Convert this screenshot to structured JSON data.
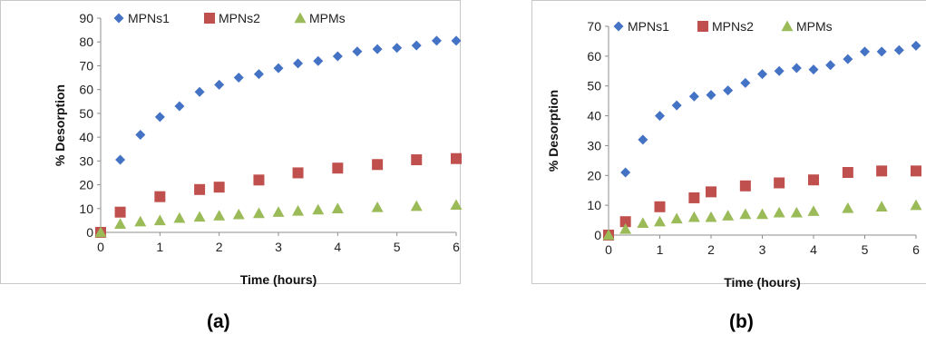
{
  "chart_data": [
    {
      "type": "scatter",
      "xlabel": "Time (hours)",
      "ylabel": "% Desorption",
      "xlim": [
        0,
        6
      ],
      "ylim": [
        0,
        90
      ],
      "xticks": [
        "0",
        "1",
        "2",
        "3",
        "4",
        "5",
        "6"
      ],
      "yticks": [
        "0",
        "10",
        "20",
        "30",
        "40",
        "50",
        "60",
        "70",
        "80",
        "90"
      ],
      "legend_position": "top",
      "grid": false,
      "panel_label": "(a)",
      "series": [
        {
          "name": "MPNs1",
          "marker": "diamond",
          "color": "#4472c4",
          "x": [
            0,
            0.33,
            0.67,
            1,
            1.33,
            1.67,
            2,
            2.33,
            2.67,
            3,
            3.33,
            3.67,
            4,
            4.33,
            4.67,
            5,
            5.33,
            5.67,
            6
          ],
          "y": [
            0,
            30.5,
            41,
            48.5,
            53,
            59,
            62,
            65,
            66.5,
            69,
            71,
            72,
            74,
            76,
            77,
            77.5,
            78.5,
            80.5,
            80.5
          ]
        },
        {
          "name": "MPNs2",
          "marker": "square",
          "color": "#c0504d",
          "x": [
            0,
            0.33,
            1,
            1.67,
            2,
            2.67,
            3.33,
            4,
            4.67,
            5.33,
            6
          ],
          "y": [
            0,
            8.5,
            15,
            18,
            19,
            22,
            25,
            27,
            28.5,
            30.5,
            31
          ]
        },
        {
          "name": "MPMs",
          "marker": "triangle",
          "color": "#9bbb59",
          "x": [
            0,
            0.33,
            0.67,
            1,
            1.33,
            1.67,
            2,
            2.33,
            2.67,
            3,
            3.33,
            3.67,
            4,
            4.67,
            5.33,
            6
          ],
          "y": [
            0,
            3.5,
            4.5,
            5,
            6,
            6.5,
            7,
            7.5,
            8,
            8.5,
            9,
            9.5,
            10,
            10.5,
            11,
            11.5
          ]
        }
      ]
    },
    {
      "type": "scatter",
      "xlabel": "Time (hours)",
      "ylabel": "% Desorption",
      "xlim": [
        0,
        6
      ],
      "ylim": [
        0,
        70
      ],
      "xticks": [
        "0",
        "1",
        "2",
        "3",
        "4",
        "5",
        "6"
      ],
      "yticks": [
        "0",
        "10",
        "20",
        "30",
        "40",
        "50",
        "60",
        "70"
      ],
      "legend_position": "top",
      "grid": false,
      "panel_label": "(b)",
      "series": [
        {
          "name": "MPNs1",
          "marker": "diamond",
          "color": "#4472c4",
          "x": [
            0,
            0.33,
            0.67,
            1,
            1.33,
            1.67,
            2,
            2.33,
            2.67,
            3,
            3.33,
            3.67,
            4,
            4.33,
            4.67,
            5,
            5.33,
            5.67,
            6
          ],
          "y": [
            0,
            21,
            32,
            40,
            43.5,
            46.5,
            47,
            48.5,
            51,
            54,
            55,
            56,
            55.5,
            57,
            59,
            61.5,
            61.5,
            62,
            63.5
          ]
        },
        {
          "name": "MPNs2",
          "marker": "square",
          "color": "#c0504d",
          "x": [
            0,
            0.33,
            1,
            1.67,
            2,
            2.67,
            3.33,
            4,
            4.67,
            5.33,
            6
          ],
          "y": [
            0,
            4.5,
            9.5,
            12.5,
            14.5,
            16.5,
            17.5,
            18.5,
            21,
            21.5,
            21.5
          ]
        },
        {
          "name": "MPMs",
          "marker": "triangle",
          "color": "#9bbb59",
          "x": [
            0,
            0.33,
            0.67,
            1,
            1.33,
            1.67,
            2,
            2.33,
            2.67,
            3,
            3.33,
            3.67,
            4,
            4.67,
            5.33,
            6
          ],
          "y": [
            0,
            2,
            4,
            4.5,
            5.5,
            6,
            6,
            6.5,
            7,
            7,
            7.5,
            7.5,
            8,
            9,
            9.5,
            10
          ]
        }
      ]
    }
  ]
}
